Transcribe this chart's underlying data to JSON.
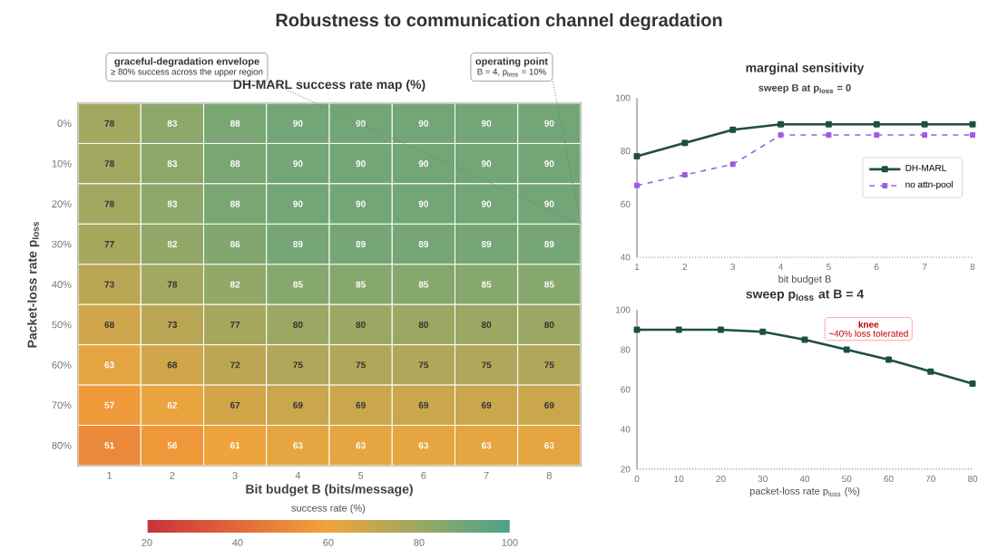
{
  "chart_data": [
    {
      "type": "heatmap",
      "title": "Robustness to communication channel degradation",
      "subtitle": "DH-MARL success rate map (%)",
      "xlabel": "Bit budget B (bits/message)",
      "ylabel": "Packet-loss rate p$_{loss}$",
      "clabel": "success rate (%)",
      "categories": [
        "1",
        "2",
        "3",
        "4",
        "5",
        "6",
        "7",
        "8"
      ],
      "y_categories": [
        "0%",
        "10%",
        "20%",
        "30%",
        "40%",
        "50%",
        "60%",
        "70%",
        "80%"
      ],
      "cells": [
        [
          78,
          83,
          88,
          90,
          90,
          90,
          90,
          90
        ],
        [
          78,
          83,
          88,
          90,
          90,
          90,
          90,
          90
        ],
        [
          78,
          83,
          88,
          90,
          90,
          90,
          90,
          90
        ],
        [
          77,
          82,
          86,
          89,
          89,
          89,
          89,
          89
        ],
        [
          73,
          78,
          82,
          85,
          85,
          85,
          85,
          85
        ],
        [
          68,
          73,
          77,
          80,
          80,
          80,
          80,
          80
        ],
        [
          63,
          68,
          72,
          75,
          75,
          75,
          75,
          75
        ],
        [
          57,
          62,
          67,
          69,
          69,
          69,
          69,
          69
        ],
        [
          51,
          56,
          61,
          63,
          63,
          63,
          63,
          63
        ]
      ],
      "clim": [
        20,
        100
      ],
      "cticks": [
        20,
        40,
        60,
        80,
        100
      ],
      "data_labels": true,
      "annotations": [
        "graceful-degradation envelope",
        "≥ 80% success across the upper region",
        "operating point",
        "B = 4, p$_{loss}$ = 10%"
      ]
    },
    {
      "type": "line",
      "title": "marginal sensitivity",
      "subtitle": "sweep B at p$_{loss}$ = 0",
      "xlabel": "bit budget B",
      "x": [
        1,
        2,
        3,
        4,
        5,
        6,
        7,
        8
      ],
      "xlim": [
        1,
        8
      ],
      "xticks": [
        1,
        2,
        3,
        4,
        5,
        6,
        7,
        8
      ],
      "ylim": [
        40,
        100
      ],
      "yticks": [
        40,
        60,
        80,
        100
      ],
      "series": [
        {
          "name": "DH-MARL",
          "color": "#1d4f45",
          "values": [
            78,
            83,
            88,
            90,
            90,
            90,
            90,
            90
          ]
        },
        {
          "name": "no attn-pool",
          "color": "#9b5de5",
          "line_style": "dashed",
          "values": [
            67,
            71,
            75,
            86,
            86,
            86,
            86,
            86
          ]
        }
      ],
      "legend": "right",
      "marker": "square"
    },
    {
      "type": "line",
      "title": "sweep p$_{loss}$ at B = 4",
      "xlabel": "packet-loss rate p$_{loss}$ (%)",
      "x": [
        0,
        10,
        20,
        30,
        40,
        50,
        60,
        70,
        80
      ],
      "xlim": [
        0,
        80
      ],
      "xticks": [
        0,
        10,
        20,
        30,
        40,
        50,
        60,
        70,
        80
      ],
      "ylim": [
        20,
        100
      ],
      "yticks": [
        20,
        40,
        60,
        80,
        100
      ],
      "series": [
        {
          "color": "#1d4f45",
          "values": [
            90,
            90,
            90,
            89,
            85,
            80,
            75,
            69,
            63
          ]
        }
      ],
      "marker": "square",
      "annotations": [
        "knee",
        "~40% loss tolerated"
      ]
    }
  ]
}
